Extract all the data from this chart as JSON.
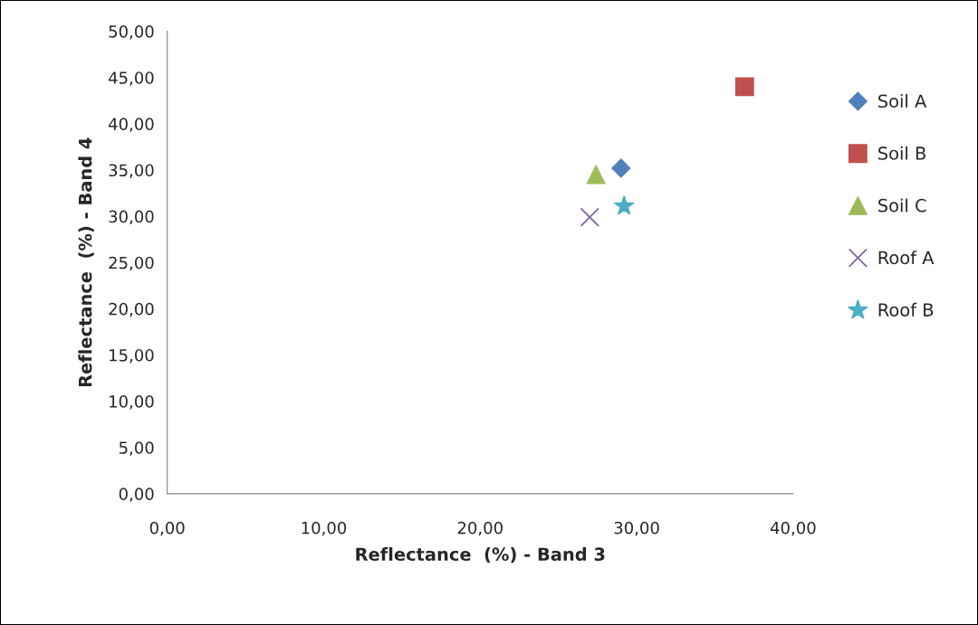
{
  "chart_data": {
    "type": "scatter",
    "xlabel": "Reflectance  (%) - Band 3",
    "ylabel": "Reflectance  (%) - Band 4",
    "xlim": [
      0,
      40
    ],
    "ylim": [
      0,
      50
    ],
    "xticks": [
      {
        "value": 0,
        "label": "0,00"
      },
      {
        "value": 10,
        "label": "10,00"
      },
      {
        "value": 20,
        "label": "20,00"
      },
      {
        "value": 30,
        "label": "30,00"
      },
      {
        "value": 40,
        "label": "40,00"
      }
    ],
    "yticks": [
      {
        "value": 0,
        "label": "0,00"
      },
      {
        "value": 5,
        "label": "5,00"
      },
      {
        "value": 10,
        "label": "10,00"
      },
      {
        "value": 15,
        "label": "15,00"
      },
      {
        "value": 20,
        "label": "20,00"
      },
      {
        "value": 25,
        "label": "25,00"
      },
      {
        "value": 30,
        "label": "30,00"
      },
      {
        "value": 35,
        "label": "35,00"
      },
      {
        "value": 40,
        "label": "40,00"
      },
      {
        "value": 45,
        "label": "45,00"
      },
      {
        "value": 50,
        "label": "50,00"
      }
    ],
    "grid": false,
    "legend": "right",
    "series": [
      {
        "name": "Soil A",
        "color": "#4f81bd",
        "marker": "diamond",
        "x": [
          29.0
        ],
        "values": [
          35.2
        ]
      },
      {
        "name": "Soil B",
        "color": "#c0504d",
        "marker": "square",
        "x": [
          36.9
        ],
        "values": [
          44.0
        ]
      },
      {
        "name": "Soil C",
        "color": "#9bbb59",
        "marker": "triangle",
        "x": [
          27.4
        ],
        "values": [
          34.5
        ]
      },
      {
        "name": "Roof A",
        "color": "#8064a2",
        "marker": "cross",
        "x": [
          27.0
        ],
        "values": [
          29.9
        ]
      },
      {
        "name": "Roof B",
        "color": "#4bacc6",
        "marker": "star",
        "x": [
          29.2
        ],
        "values": [
          31.1
        ]
      }
    ]
  }
}
